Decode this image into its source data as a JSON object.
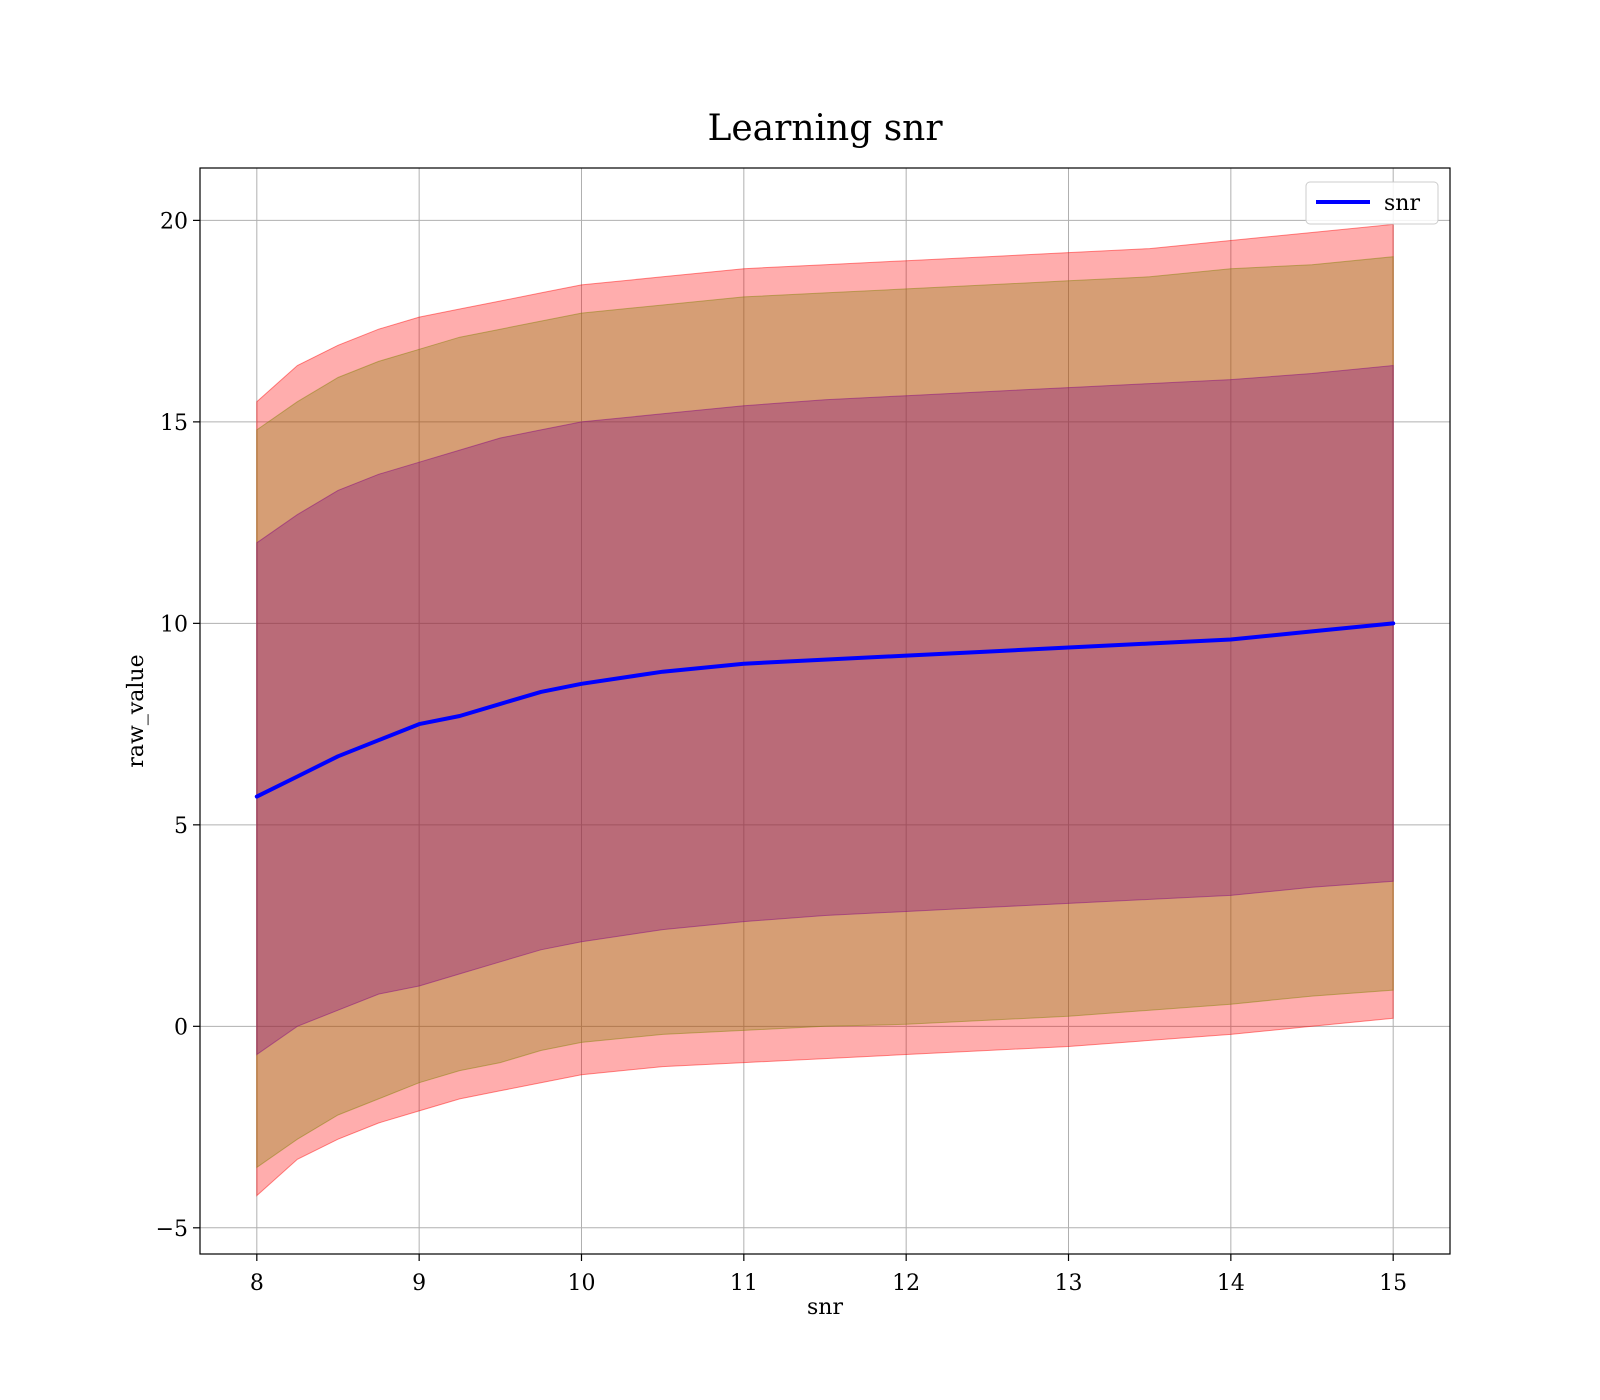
{
  "chart_data": {
    "type": "area",
    "title": "Learning snr",
    "xlabel": "snr",
    "ylabel": "raw_value",
    "xlim": [
      7.65,
      15.35
    ],
    "ylim": [
      -5.65,
      21.3
    ],
    "xticks": [
      8,
      9,
      10,
      11,
      12,
      13,
      14,
      15
    ],
    "yticks": [
      -5,
      0,
      5,
      10,
      15,
      20
    ],
    "xtick_labels": [
      "8",
      "9",
      "10",
      "11",
      "12",
      "13",
      "14",
      "15"
    ],
    "ytick_labels": [
      "−5",
      "0",
      "5",
      "10",
      "15",
      "20"
    ],
    "grid": true,
    "legend": {
      "placement": "top-right",
      "entries": [
        "snr"
      ]
    },
    "x": [
      8.0,
      8.25,
      8.5,
      8.75,
      9.0,
      9.25,
      9.5,
      9.75,
      10.0,
      10.5,
      11.0,
      11.5,
      12.0,
      12.5,
      13.0,
      13.5,
      14.0,
      14.5,
      15.0
    ],
    "series": [
      {
        "name": "snr",
        "color": "#0000ff",
        "values": [
          5.7,
          6.2,
          6.7,
          7.1,
          7.5,
          7.7,
          8.0,
          8.3,
          8.5,
          8.8,
          9.0,
          9.1,
          9.2,
          9.3,
          9.4,
          9.5,
          9.6,
          9.8,
          10.0
        ]
      }
    ],
    "bands": [
      {
        "color": "#ff0000",
        "opacity": 0.32,
        "lower": [
          -4.2,
          -3.3,
          -2.8,
          -2.4,
          -2.1,
          -1.8,
          -1.6,
          -1.4,
          -1.2,
          -1.0,
          -0.9,
          -0.8,
          -0.7,
          -0.6,
          -0.5,
          -0.35,
          -0.2,
          0.0,
          0.2
        ],
        "upper": [
          15.5,
          16.4,
          16.9,
          17.3,
          17.6,
          17.8,
          18.0,
          18.2,
          18.4,
          18.6,
          18.8,
          18.9,
          19.0,
          19.1,
          19.2,
          19.3,
          19.5,
          19.7,
          19.9
        ]
      },
      {
        "color": "#808000",
        "opacity": 0.32,
        "lower": [
          -3.5,
          -2.8,
          -2.2,
          -1.8,
          -1.4,
          -1.1,
          -0.9,
          -0.6,
          -0.4,
          -0.2,
          -0.1,
          0.0,
          0.05,
          0.15,
          0.25,
          0.4,
          0.55,
          0.75,
          0.9
        ],
        "upper": [
          14.8,
          15.5,
          16.1,
          16.5,
          16.8,
          17.1,
          17.3,
          17.5,
          17.7,
          17.9,
          18.1,
          18.2,
          18.3,
          18.4,
          18.5,
          18.6,
          18.8,
          18.9,
          19.1
        ]
      },
      {
        "color": "#800080",
        "opacity": 0.32,
        "lower": [
          -0.7,
          0.0,
          0.4,
          0.8,
          1.0,
          1.3,
          1.6,
          1.9,
          2.1,
          2.4,
          2.6,
          2.75,
          2.85,
          2.95,
          3.05,
          3.15,
          3.25,
          3.45,
          3.6
        ],
        "upper": [
          12.0,
          12.7,
          13.3,
          13.7,
          14.0,
          14.3,
          14.6,
          14.8,
          15.0,
          15.2,
          15.4,
          15.55,
          15.65,
          15.75,
          15.85,
          15.95,
          16.05,
          16.2,
          16.4
        ]
      }
    ]
  }
}
